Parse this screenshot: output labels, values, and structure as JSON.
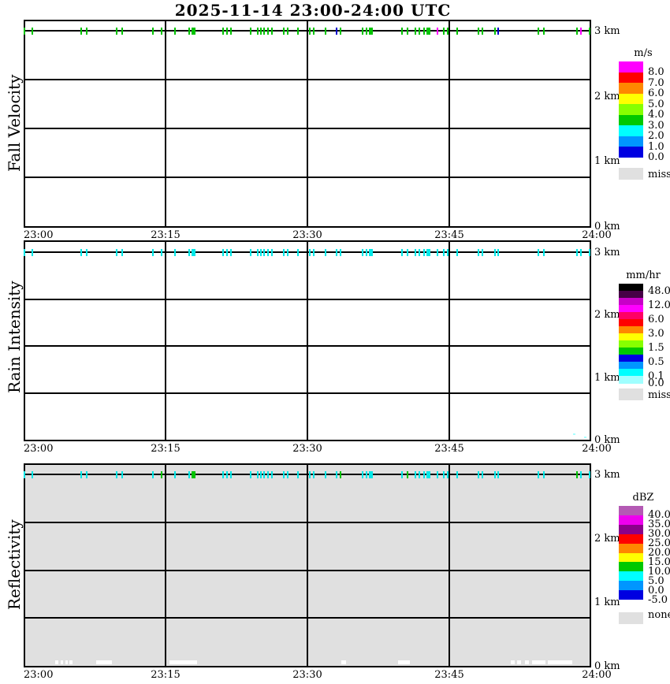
{
  "title": "2025-11-14  23:00-24:00 UTC",
  "time_labels": [
    "23:00",
    "23:15",
    "23:30",
    "23:45",
    "24:00"
  ],
  "height_labels": [
    "3 km",
    "2 km",
    "1 km",
    "0 km"
  ],
  "colors": {
    "green": "#00c300",
    "cyan": "#00e8e8",
    "blue": "#0000cc",
    "magenta": "#ff00ff",
    "palecyan": "#a8ffff",
    "white": "#ffffff",
    "miss_gray": "#e0e0e0",
    "grid_black": "#000000",
    "reflectivity_background": "#e0e0e0"
  },
  "chart_data": [
    {
      "type": "heatmap",
      "ylabel": "Fall Velocity",
      "unit": "m/s",
      "x_ticklabels": [
        "23:00",
        "23:15",
        "23:30",
        "23:45",
        "24:00"
      ],
      "y_ticklabels": [
        "3 km",
        "2 km",
        "1 km",
        "0 km"
      ],
      "y_range_km": [
        0,
        3
      ],
      "grid": "on",
      "background": "#ffffff",
      "detection_height_km": 3.0,
      "legend": {
        "title": "m/s",
        "position": "right",
        "bands": [
          {
            "color": "#ff00ff",
            "label": "8.0"
          },
          {
            "color": "#ff0000",
            "label": "7.0"
          },
          {
            "color": "#ff8700",
            "label": "6.0"
          },
          {
            "color": "#ffff00",
            "label": "5.0"
          },
          {
            "color": "#87ff00",
            "label": "4.0"
          },
          {
            "color": "#00c800",
            "label": "3.0"
          },
          {
            "color": "#00ffff",
            "label": "2.0"
          },
          {
            "color": "#0096ff",
            "label": "1.0"
          },
          {
            "color": "#0000e1",
            "label": "0.0"
          }
        ],
        "miss": {
          "color": "#e0e0e0",
          "label": "miss"
        }
      },
      "points": [
        {
          "min": 0.1,
          "color": "green"
        },
        {
          "min": 0.9,
          "color": "green"
        },
        {
          "min": 6.1,
          "color": "green"
        },
        {
          "min": 6.7,
          "color": "green"
        },
        {
          "min": 9.8,
          "color": "green"
        },
        {
          "min": 10.4,
          "color": "green"
        },
        {
          "min": 13.7,
          "color": "green"
        },
        {
          "min": 14.6,
          "color": "green"
        },
        {
          "min": 16.0,
          "color": "green"
        },
        {
          "min": 17.5,
          "color": "green"
        },
        {
          "min": 17.95,
          "color": "green",
          "wide": true
        },
        {
          "min": 21.1,
          "color": "green"
        },
        {
          "min": 21.5,
          "color": "green"
        },
        {
          "min": 21.9,
          "color": "green"
        },
        {
          "min": 24.0,
          "color": "green"
        },
        {
          "min": 24.75,
          "color": "green"
        },
        {
          "min": 25.05,
          "color": "green"
        },
        {
          "min": 25.4,
          "color": "green"
        },
        {
          "min": 25.8,
          "color": "green"
        },
        {
          "min": 26.25,
          "color": "green"
        },
        {
          "min": 27.5,
          "color": "green"
        },
        {
          "min": 27.9,
          "color": "green"
        },
        {
          "min": 29.0,
          "color": "green"
        },
        {
          "min": 30.25,
          "color": "green"
        },
        {
          "min": 30.7,
          "color": "green"
        },
        {
          "min": 31.9,
          "color": "green"
        },
        {
          "min": 33.1,
          "color": "blue"
        },
        {
          "min": 33.5,
          "color": "green"
        },
        {
          "min": 35.8,
          "color": "green"
        },
        {
          "min": 36.25,
          "color": "green"
        },
        {
          "min": 36.7,
          "color": "green",
          "wide": true
        },
        {
          "min": 40.0,
          "color": "green"
        },
        {
          "min": 40.6,
          "color": "green"
        },
        {
          "min": 41.4,
          "color": "green"
        },
        {
          "min": 41.8,
          "color": "green"
        },
        {
          "min": 42.3,
          "color": "green"
        },
        {
          "min": 42.75,
          "color": "green",
          "wide": true
        },
        {
          "min": 43.75,
          "color": "magenta"
        },
        {
          "min": 44.4,
          "color": "green"
        },
        {
          "min": 44.8,
          "color": "green"
        },
        {
          "min": 45.8,
          "color": "green"
        },
        {
          "min": 48.1,
          "color": "green"
        },
        {
          "min": 48.5,
          "color": "green"
        },
        {
          "min": 49.8,
          "color": "green"
        },
        {
          "min": 50.2,
          "color": "blue"
        },
        {
          "min": 54.4,
          "color": "green"
        },
        {
          "min": 55.0,
          "color": "green"
        },
        {
          "min": 58.5,
          "color": "green"
        },
        {
          "min": 58.9,
          "color": "magenta"
        },
        {
          "min": 59.8,
          "color": "green"
        }
      ]
    },
    {
      "type": "heatmap",
      "ylabel": "Rain Intensity",
      "unit": "mm/hr",
      "x_ticklabels": [
        "23:00",
        "23:15",
        "23:30",
        "23:45",
        "24:00"
      ],
      "y_ticklabels": [
        "3 km",
        "2 km",
        "1 km",
        "0 km"
      ],
      "y_range_km": [
        0,
        3
      ],
      "grid": "on",
      "background": "#ffffff",
      "detection_height_km": 3.0,
      "legend": {
        "title": "mm/hr",
        "position": "right",
        "bands": [
          {
            "color": "#000000",
            "label": "48.0"
          },
          {
            "color": "#460046",
            "label": ""
          },
          {
            "color": "#c800c8",
            "label": "12.0"
          },
          {
            "color": "#ff00ff",
            "label": ""
          },
          {
            "color": "#ff0064",
            "label": "6.0"
          },
          {
            "color": "#ff0000",
            "label": ""
          },
          {
            "color": "#ff8700",
            "label": "3.0"
          },
          {
            "color": "#ffff00",
            "label": ""
          },
          {
            "color": "#87ff00",
            "label": "1.5"
          },
          {
            "color": "#00c800",
            "label": ""
          },
          {
            "color": "#0000e1",
            "label": "0.5"
          },
          {
            "color": "#0096ff",
            "label": ""
          },
          {
            "color": "#00ffff",
            "label": "0.1"
          },
          {
            "color": "#a0ffff",
            "label": "0.0"
          }
        ],
        "miss": {
          "color": "#e0e0e0",
          "label": "miss"
        }
      },
      "points": [
        {
          "min": 0.1,
          "color": "cyan"
        },
        {
          "min": 0.9,
          "color": "cyan"
        },
        {
          "min": 6.1,
          "color": "cyan"
        },
        {
          "min": 6.7,
          "color": "cyan"
        },
        {
          "min": 9.8,
          "color": "cyan"
        },
        {
          "min": 10.4,
          "color": "cyan"
        },
        {
          "min": 13.7,
          "color": "cyan"
        },
        {
          "min": 14.6,
          "color": "cyan"
        },
        {
          "min": 16.0,
          "color": "cyan"
        },
        {
          "min": 17.5,
          "color": "cyan"
        },
        {
          "min": 17.95,
          "color": "cyan",
          "wide": true
        },
        {
          "min": 21.1,
          "color": "cyan"
        },
        {
          "min": 21.5,
          "color": "cyan"
        },
        {
          "min": 21.9,
          "color": "cyan"
        },
        {
          "min": 24.0,
          "color": "cyan"
        },
        {
          "min": 24.75,
          "color": "cyan"
        },
        {
          "min": 25.05,
          "color": "cyan"
        },
        {
          "min": 25.4,
          "color": "cyan"
        },
        {
          "min": 25.8,
          "color": "cyan"
        },
        {
          "min": 26.25,
          "color": "cyan"
        },
        {
          "min": 27.5,
          "color": "cyan"
        },
        {
          "min": 27.9,
          "color": "cyan"
        },
        {
          "min": 29.0,
          "color": "cyan"
        },
        {
          "min": 30.25,
          "color": "cyan"
        },
        {
          "min": 30.7,
          "color": "cyan"
        },
        {
          "min": 31.9,
          "color": "cyan"
        },
        {
          "min": 33.1,
          "color": "cyan"
        },
        {
          "min": 33.5,
          "color": "cyan"
        },
        {
          "min": 35.8,
          "color": "cyan"
        },
        {
          "min": 36.25,
          "color": "cyan"
        },
        {
          "min": 36.7,
          "color": "cyan",
          "wide": true
        },
        {
          "min": 40.0,
          "color": "cyan"
        },
        {
          "min": 40.6,
          "color": "cyan"
        },
        {
          "min": 41.4,
          "color": "cyan"
        },
        {
          "min": 41.8,
          "color": "cyan"
        },
        {
          "min": 42.3,
          "color": "cyan"
        },
        {
          "min": 42.75,
          "color": "cyan",
          "wide": true
        },
        {
          "min": 43.75,
          "color": "cyan"
        },
        {
          "min": 44.4,
          "color": "cyan"
        },
        {
          "min": 44.8,
          "color": "cyan"
        },
        {
          "min": 45.8,
          "color": "cyan"
        },
        {
          "min": 48.1,
          "color": "cyan"
        },
        {
          "min": 48.5,
          "color": "cyan"
        },
        {
          "min": 49.8,
          "color": "cyan"
        },
        {
          "min": 50.2,
          "color": "cyan"
        },
        {
          "min": 54.4,
          "color": "cyan"
        },
        {
          "min": 55.0,
          "color": "cyan"
        },
        {
          "min": 58.5,
          "color": "cyan"
        },
        {
          "min": 58.9,
          "color": "cyan"
        },
        {
          "min": 59.8,
          "color": "cyan"
        },
        {
          "min": 58.2,
          "km": 0.08,
          "color": "palecyan",
          "kind": "dot"
        },
        {
          "min": 59.4,
          "km": 0.03,
          "color": "palecyan",
          "kind": "dot"
        }
      ]
    },
    {
      "type": "heatmap",
      "ylabel": "Reflectivity",
      "unit": "dBZ",
      "x_ticklabels": [
        "23:00",
        "23:15",
        "23:30",
        "23:45",
        "24:00"
      ],
      "y_ticklabels": [
        "3 km",
        "2 km",
        "1 km",
        "0 km"
      ],
      "y_range_km": [
        0,
        3
      ],
      "grid": "on",
      "background": "#e0e0e0",
      "detection_height_km": 3.0,
      "legend": {
        "title": "dBZ",
        "position": "right",
        "bands": [
          {
            "color": "#b45ab4",
            "label": "40.0"
          },
          {
            "color": "#ee00ee",
            "label": "35.0"
          },
          {
            "color": "#8b008b",
            "label": "30.0"
          },
          {
            "color": "#ff0000",
            "label": "25.0"
          },
          {
            "color": "#ff8700",
            "label": "20.0"
          },
          {
            "color": "#ffff00",
            "label": "15.0"
          },
          {
            "color": "#00c800",
            "label": "10.0"
          },
          {
            "color": "#00ffff",
            "label": "5.0"
          },
          {
            "color": "#0096ff",
            "label": "0.0"
          },
          {
            "color": "#0000e1",
            "label": "-5.0"
          }
        ],
        "miss": {
          "color": "#e0e0e0",
          "label": "none"
        }
      },
      "points": [
        {
          "min": 0.1,
          "color": "cyan"
        },
        {
          "min": 0.9,
          "color": "cyan"
        },
        {
          "min": 6.1,
          "color": "cyan"
        },
        {
          "min": 6.7,
          "color": "cyan"
        },
        {
          "min": 9.8,
          "color": "cyan"
        },
        {
          "min": 10.4,
          "color": "cyan"
        },
        {
          "min": 13.7,
          "color": "cyan"
        },
        {
          "min": 14.6,
          "color": "green"
        },
        {
          "min": 16.0,
          "color": "cyan"
        },
        {
          "min": 17.5,
          "color": "cyan"
        },
        {
          "min": 17.95,
          "color": "green",
          "wide": true
        },
        {
          "min": 21.1,
          "color": "cyan"
        },
        {
          "min": 21.5,
          "color": "cyan"
        },
        {
          "min": 21.9,
          "color": "cyan"
        },
        {
          "min": 24.0,
          "color": "cyan"
        },
        {
          "min": 24.75,
          "color": "cyan"
        },
        {
          "min": 25.05,
          "color": "cyan"
        },
        {
          "min": 25.4,
          "color": "cyan"
        },
        {
          "min": 25.8,
          "color": "cyan"
        },
        {
          "min": 26.25,
          "color": "cyan"
        },
        {
          "min": 27.5,
          "color": "cyan"
        },
        {
          "min": 27.9,
          "color": "cyan"
        },
        {
          "min": 29.0,
          "color": "cyan"
        },
        {
          "min": 30.25,
          "color": "cyan"
        },
        {
          "min": 30.7,
          "color": "cyan"
        },
        {
          "min": 31.9,
          "color": "cyan"
        },
        {
          "min": 33.1,
          "color": "cyan"
        },
        {
          "min": 33.5,
          "color": "green"
        },
        {
          "min": 35.8,
          "color": "cyan"
        },
        {
          "min": 36.25,
          "color": "cyan"
        },
        {
          "min": 36.7,
          "color": "cyan",
          "wide": true
        },
        {
          "min": 40.0,
          "color": "cyan"
        },
        {
          "min": 40.6,
          "color": "green"
        },
        {
          "min": 41.4,
          "color": "cyan"
        },
        {
          "min": 41.8,
          "color": "cyan"
        },
        {
          "min": 42.3,
          "color": "cyan"
        },
        {
          "min": 42.75,
          "color": "cyan",
          "wide": true
        },
        {
          "min": 43.75,
          "color": "cyan"
        },
        {
          "min": 44.4,
          "color": "cyan"
        },
        {
          "min": 44.8,
          "color": "cyan"
        },
        {
          "min": 45.8,
          "color": "cyan"
        },
        {
          "min": 48.1,
          "color": "cyan"
        },
        {
          "min": 48.5,
          "color": "cyan"
        },
        {
          "min": 49.8,
          "color": "cyan"
        },
        {
          "min": 50.2,
          "color": "cyan"
        },
        {
          "min": 54.4,
          "color": "cyan"
        },
        {
          "min": 55.0,
          "color": "cyan"
        },
        {
          "min": 58.5,
          "color": "green"
        },
        {
          "min": 58.9,
          "color": "cyan"
        },
        {
          "min": 59.8,
          "color": "cyan"
        },
        {
          "min": 3.5,
          "wmin": 0.3,
          "color": "white",
          "kind": "patch"
        },
        {
          "min": 4.0,
          "wmin": 0.25,
          "color": "white",
          "kind": "patch"
        },
        {
          "min": 4.5,
          "wmin": 0.25,
          "color": "white",
          "kind": "patch"
        },
        {
          "min": 5.0,
          "wmin": 0.3,
          "color": "white",
          "kind": "patch"
        },
        {
          "min": 8.5,
          "wmin": 1.7,
          "color": "white",
          "kind": "patch"
        },
        {
          "min": 16.9,
          "wmin": 2.9,
          "color": "white",
          "kind": "patch"
        },
        {
          "min": 33.8,
          "wmin": 0.5,
          "color": "white",
          "kind": "patch"
        },
        {
          "min": 40.2,
          "wmin": 1.3,
          "color": "white",
          "kind": "patch"
        },
        {
          "min": 51.7,
          "wmin": 0.4,
          "color": "white",
          "kind": "patch"
        },
        {
          "min": 52.4,
          "wmin": 0.4,
          "color": "white",
          "kind": "patch"
        },
        {
          "min": 53.2,
          "wmin": 0.4,
          "color": "white",
          "kind": "patch"
        },
        {
          "min": 54.0,
          "wmin": 0.5,
          "color": "white",
          "kind": "patch"
        },
        {
          "min": 54.6,
          "wmin": 1.2,
          "color": "white",
          "kind": "patch"
        },
        {
          "min": 56.7,
          "wmin": 2.6,
          "color": "white",
          "kind": "patch"
        }
      ]
    }
  ]
}
